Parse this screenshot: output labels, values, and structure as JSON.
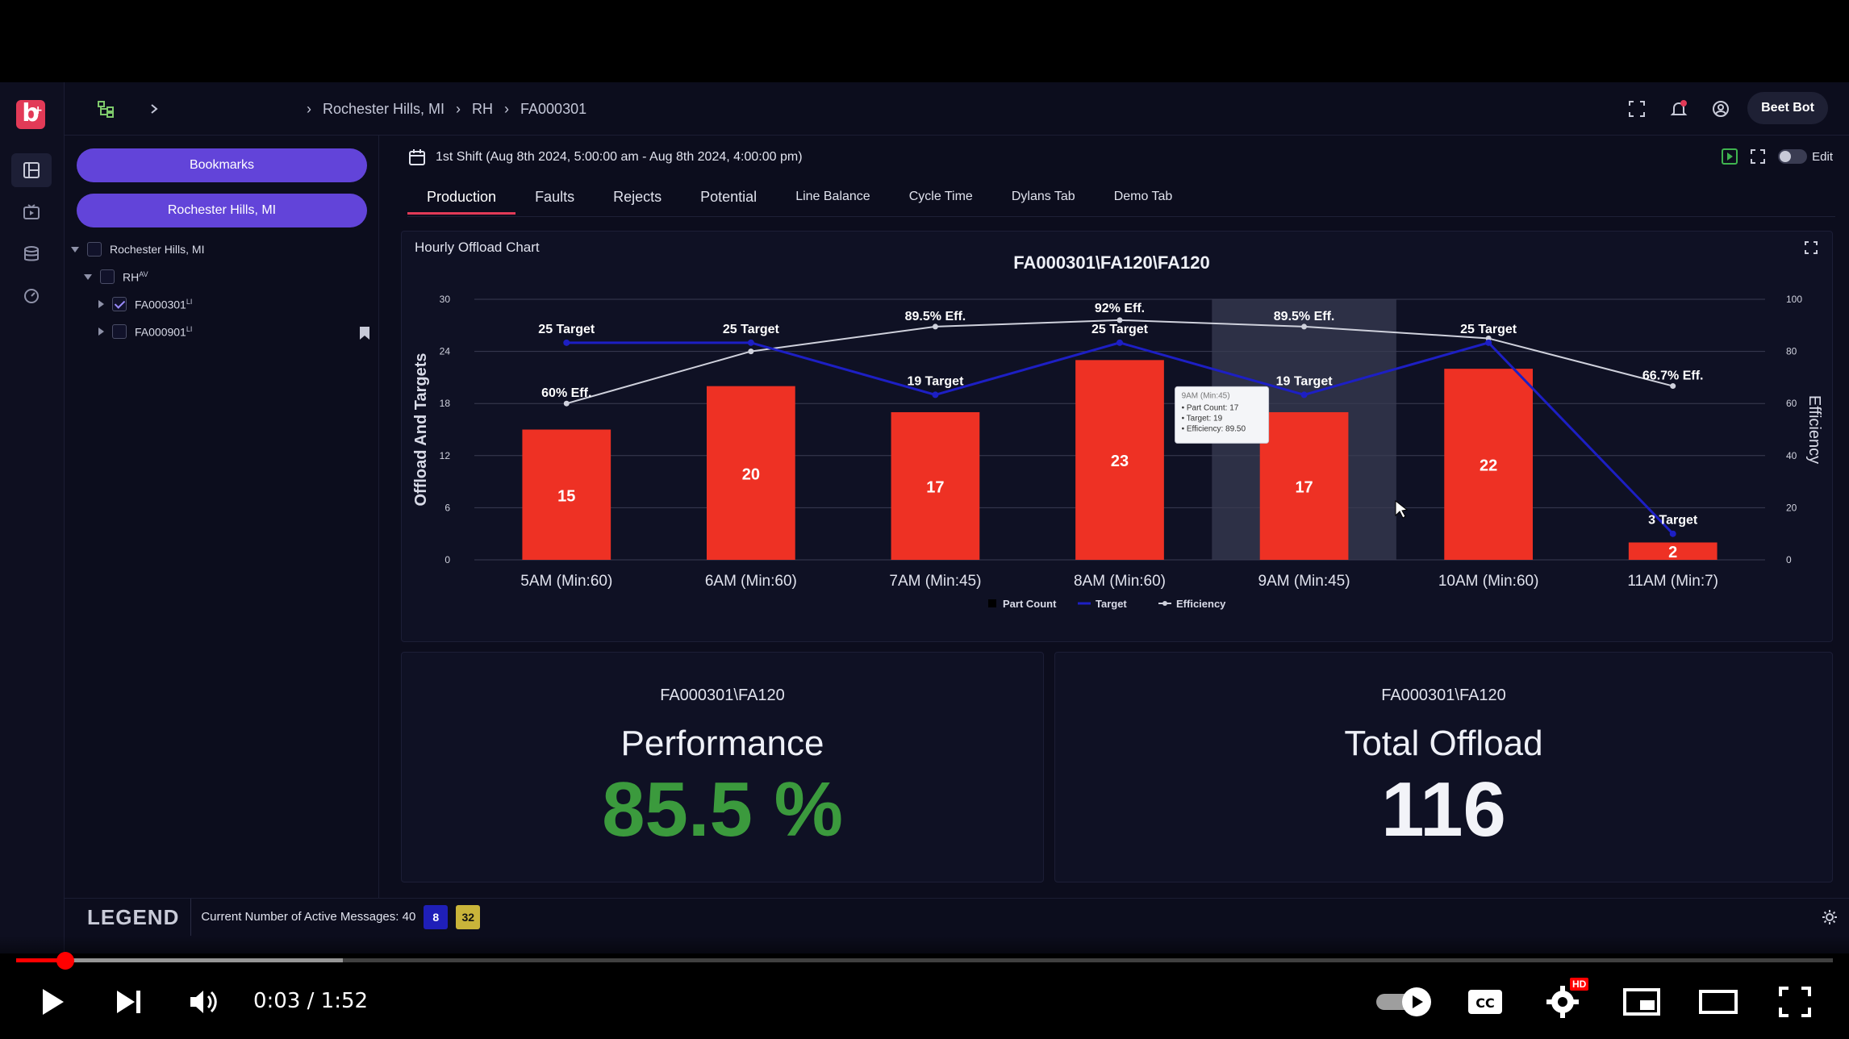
{
  "header": {
    "breadcrumbs": [
      "Rochester Hills, MI",
      "RH",
      "FA000301"
    ],
    "user_label": "Beet Bot",
    "notification_count": "0"
  },
  "sidebar": {
    "bookmarks_label": "Bookmarks",
    "location_label": "Rochester Hills, MI",
    "tree": [
      {
        "label": "Rochester Hills, MI",
        "sup": "",
        "checked": false
      },
      {
        "label": "RH",
        "sup": "AV",
        "checked": false
      },
      {
        "label": "FA000301",
        "sup": "LI",
        "checked": true
      },
      {
        "label": "FA000901",
        "sup": "LI",
        "checked": false
      }
    ]
  },
  "main": {
    "shift_label": "1st Shift (Aug 8th 2024, 5:00:00 am - Aug 8th 2024, 4:00:00 pm)",
    "edit_label": "Edit",
    "tabs": [
      "Production",
      "Faults",
      "Rejects",
      "Potential",
      "Line Balance",
      "Cycle Time",
      "Dylans Tab",
      "Demo Tab"
    ],
    "chart_card_title": "Hourly Offload Chart",
    "performance": {
      "subtitle": "FA000301\\FA120",
      "title": "Performance",
      "value": "85.5 %"
    },
    "total_offload": {
      "subtitle": "FA000301\\FA120",
      "title": "Total Offload",
      "value": "116"
    }
  },
  "chart_data": {
    "type": "bar",
    "title": "FA000301\\FA120\\FA120",
    "ylabel": "Offload And Targets",
    "y2label": "Efficiency",
    "ylim": [
      0,
      30
    ],
    "y2lim": [
      0,
      100
    ],
    "yticks": [
      0,
      6,
      12,
      18,
      24,
      30
    ],
    "y2ticks": [
      0,
      20,
      40,
      60,
      80,
      100
    ],
    "categories": [
      "5AM (Min:60)",
      "6AM (Min:60)",
      "7AM (Min:45)",
      "8AM (Min:60)",
      "9AM (Min:45)",
      "10AM (Min:60)",
      "11AM (Min:7)"
    ],
    "series": [
      {
        "name": "Part Count",
        "kind": "bar",
        "color": "#ee3124",
        "values": [
          15,
          20,
          17,
          23,
          17,
          22,
          2
        ]
      },
      {
        "name": "Target",
        "kind": "line",
        "color": "#1d1fc4",
        "values": [
          25,
          25,
          19,
          25,
          19,
          25,
          3
        ]
      },
      {
        "name": "Efficiency",
        "kind": "line",
        "axis": "right",
        "color": "#cfd1dc",
        "values": [
          60,
          80,
          89.5,
          92,
          89.5,
          85,
          66.7
        ]
      }
    ],
    "target_labels": [
      "25 Target",
      "25 Target",
      "19 Target",
      "25 Target",
      "19 Target",
      "25 Target",
      "3 Target"
    ],
    "efficiency_labels": [
      "60% Eff.",
      "",
      "89.5% Eff.",
      "92% Eff.",
      "89.5% Eff.",
      "",
      "66.7% Eff."
    ],
    "highlight_index": 4,
    "tooltip": {
      "title": "9AM (Min:45)",
      "lines": [
        "Part Count: 17",
        "Target: 19",
        "Efficiency: 89.50"
      ]
    },
    "legend": [
      "Part Count",
      "Target",
      "Efficiency"
    ],
    "legend_position": "bottom-center"
  },
  "legend_bar": {
    "title": "LEGEND",
    "message": "Current Number of Active Messages: 40",
    "badges": [
      {
        "value": "8",
        "color": "#1f1fb8"
      },
      {
        "value": "32",
        "color": "#c9b43a"
      }
    ]
  },
  "video": {
    "time": "0:03 / 1:52",
    "played_fraction": 0.027,
    "buffered_fraction": 0.18,
    "hd_badge": "HD"
  }
}
